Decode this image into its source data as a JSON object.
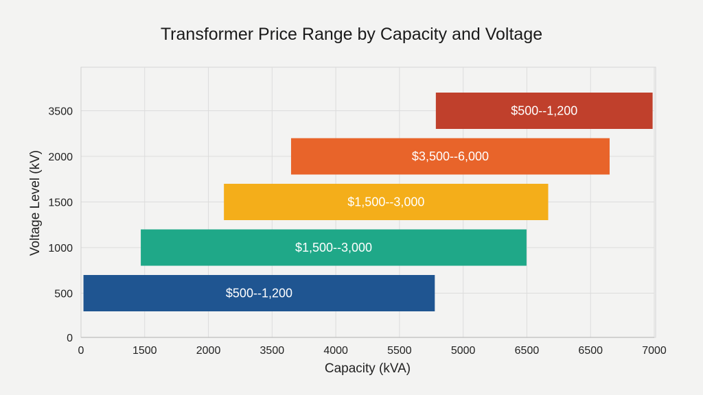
{
  "chart_data": {
    "type": "bar",
    "orientation": "horizontal-range",
    "title": "Transformer Price Range by Capacity and Voltage",
    "xlabel": "Capacity (kVA)",
    "ylabel": "Voltage Level (kV)",
    "x_tick_labels": [
      "0",
      "1500",
      "2000",
      "3500",
      "4000",
      "5500",
      "5000",
      "6500",
      "6500",
      "7000"
    ],
    "xlim": [
      0,
      7000
    ],
    "x_scale_note": "bar extents estimated on a linear 0-7000 kVA scale",
    "y_origin_label": "0",
    "categories": [
      "500",
      "1000",
      "1500",
      "2000",
      "3500"
    ],
    "grid": true,
    "bars": [
      {
        "category": "500",
        "start": 30,
        "end": 4320,
        "label": "$500--1,200",
        "color": "#1f5591"
      },
      {
        "category": "1000",
        "start": 730,
        "end": 5440,
        "label": "$1,500--3,000",
        "color": "#1fa888"
      },
      {
        "category": "1500",
        "start": 1745,
        "end": 5705,
        "label": "$1,500--3,000",
        "color": "#f4ae1a"
      },
      {
        "category": "2000",
        "start": 2565,
        "end": 6455,
        "label": "$3,500--6,000",
        "color": "#e8642a"
      },
      {
        "category": "3500",
        "start": 4333,
        "end": 6980,
        "label": "$500--1,200",
        "color": "#c0402c"
      }
    ]
  }
}
